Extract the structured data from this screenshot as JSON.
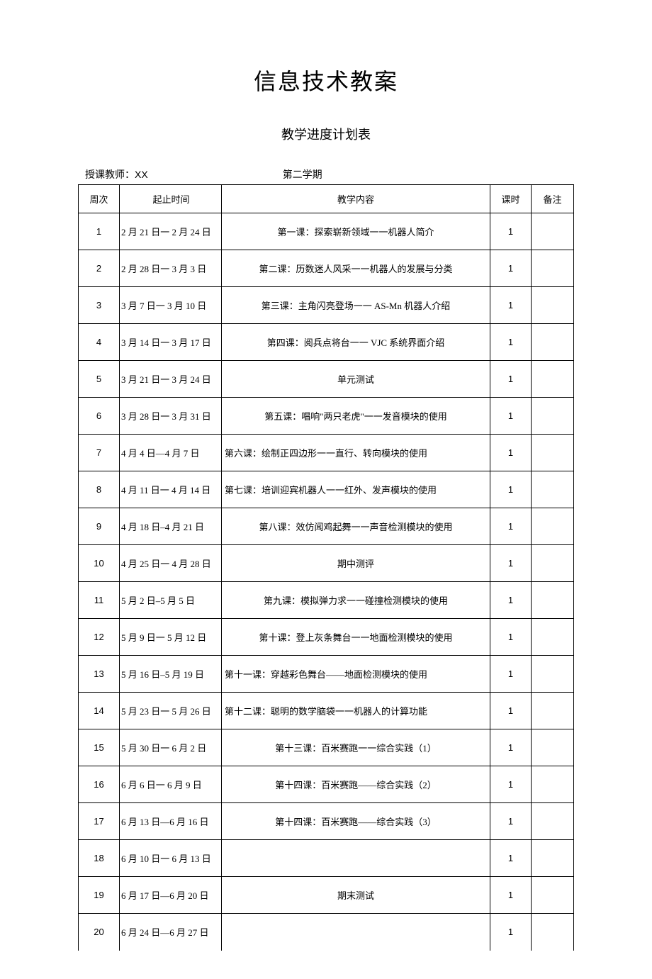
{
  "document": {
    "main_title": "信息技术教案",
    "sub_title": "教学进度计划表",
    "teacher_label": "授课教师：",
    "teacher_name": "XX",
    "semester_label": "第二学期"
  },
  "table": {
    "headers": {
      "week": "周次",
      "dates": "起止时间",
      "content": "教学内容",
      "hours": "课时",
      "notes": "备注"
    },
    "rows": [
      {
        "week": "1",
        "dates": "2 月 21 日一 2 月 24 日",
        "content": "第一课：探索崭新领域一一机器人简介",
        "hours": "1",
        "notes": "",
        "align": "center"
      },
      {
        "week": "2",
        "dates": "2 月 28 日一 3 月 3 日",
        "content": "第二课：历数迷人风采一一机器人的发展与分类",
        "hours": "1",
        "notes": "",
        "align": "center"
      },
      {
        "week": "3",
        "dates": "3 月 7 日一 3 月 10 日",
        "content": "第三课：主角闪亮登场一一 AS-Mn 机器人介绍",
        "hours": "1",
        "notes": "",
        "align": "center"
      },
      {
        "week": "4",
        "dates": "3 月 14 日一 3 月 17 日",
        "content": "第四课：阅兵点将台一一 VJC 系统界面介绍",
        "hours": "1",
        "notes": "",
        "align": "center"
      },
      {
        "week": "5",
        "dates": "3 月 21 日一 3 月 24 日",
        "content": "单元测试",
        "hours": "1",
        "notes": "",
        "align": "center"
      },
      {
        "week": "6",
        "dates": "3 月 28 日一 3 月 31 日",
        "content": "第五课：唱响\"两只老虎\"一一发音模块的使用",
        "hours": "1",
        "notes": "",
        "align": "center"
      },
      {
        "week": "7",
        "dates": "4 月 4 日—4 月 7 日",
        "content": "第六课：绘制正四边形一一直行、转向模块的使用",
        "hours": "1",
        "notes": "",
        "align": "left"
      },
      {
        "week": "8",
        "dates": "4 月 11 日一 4 月 14 日",
        "content": "第七课：培训迎宾机器人一一红外、发声模块的使用",
        "hours": "1",
        "notes": "",
        "align": "left"
      },
      {
        "week": "9",
        "dates": "4 月 18 日–4 月 21 日",
        "content": "第八课：效仿闻鸡起舞一一声音检测模块的使用",
        "hours": "1",
        "notes": "",
        "align": "center"
      },
      {
        "week": "10",
        "dates": "4 月 25 日一 4 月 28 日",
        "content": "期中测评",
        "hours": "1",
        "notes": "",
        "align": "center"
      },
      {
        "week": "11",
        "dates": "5 月 2 日–5 月 5 日",
        "content": "第九课：模拟弹力求一一碰撞检测模块的使用",
        "hours": "1",
        "notes": "",
        "align": "center"
      },
      {
        "week": "12",
        "dates": "5 月 9 日一 5 月 12 日",
        "content": "第十课：登上灰条舞台一一地面检测模块的使用",
        "hours": "1",
        "notes": "",
        "align": "center"
      },
      {
        "week": "13",
        "dates": "5 月 16 日–5 月 19 日",
        "content": "第十一课：穿越彩色舞台——地面检测模块的使用",
        "hours": "1",
        "notes": "",
        "align": "left"
      },
      {
        "week": "14",
        "dates": "5 月 23 日一 5 月 26 日",
        "content": "第十二课：聪明的数学脑袋一一机器人的计算功能",
        "hours": "1",
        "notes": "",
        "align": "left"
      },
      {
        "week": "15",
        "dates": "5 月 30 日一 6 月 2 日",
        "content": "第十三课：百米赛跑一一综合实践（1）",
        "hours": "1",
        "notes": "",
        "align": "center"
      },
      {
        "week": "16",
        "dates": "6 月 6 日一 6 月 9 日",
        "content": "第十四课：百米赛跑——综合实践（2）",
        "hours": "1",
        "notes": "",
        "align": "center"
      },
      {
        "week": "17",
        "dates": "6 月 13 日—6 月 16 日",
        "content": "第十四课：百米赛跑——综合实践（3）",
        "hours": "1",
        "notes": "",
        "align": "center"
      },
      {
        "week": "18",
        "dates": "6 月 10 日一 6 月 13 日",
        "content": "",
        "hours": "1",
        "notes": "",
        "align": "center"
      },
      {
        "week": "19",
        "dates": "6 月 17 日—6 月 20 日",
        "content": "期末测试",
        "hours": "1",
        "notes": "",
        "align": "center"
      },
      {
        "week": "20",
        "dates": "6 月 24 日—6 月 27 日",
        "content": "",
        "hours": "1",
        "notes": "",
        "align": "center"
      }
    ]
  }
}
